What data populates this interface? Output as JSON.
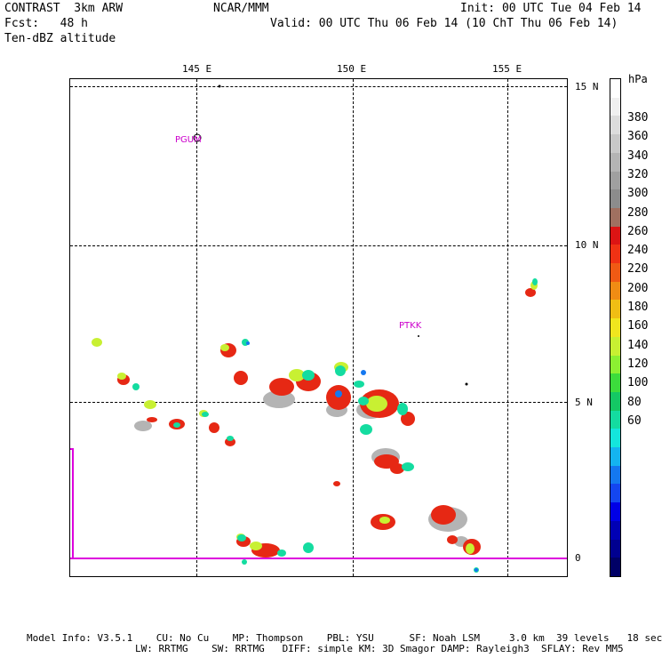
{
  "header": {
    "model": "CONTRAST  3km ARW",
    "org": "NCAR/MMM",
    "init": "Init: 00 UTC Tue 04 Feb 14",
    "fcst": "Fcst:   48 h",
    "valid": "Valid: 00 UTC Thu 06 Feb 14 (10 ChT Thu 06 Feb 14)",
    "field": "Ten-dBZ altitude"
  },
  "map": {
    "lon_labels": [
      "145 E",
      "150 E",
      "155 E"
    ],
    "lat_labels": [
      "15 N",
      "10 N",
      "5 N",
      "0"
    ],
    "stations": [
      "PGUM",
      "PTKK"
    ]
  },
  "colorbar": {
    "unit": "hPa",
    "labels": [
      "380",
      "360",
      "340",
      "320",
      "300",
      "280",
      "260",
      "240",
      "220",
      "200",
      "180",
      "160",
      "140",
      "120",
      "100",
      "80",
      "60"
    ],
    "colors": [
      "#ffffff",
      "#f0f0f0",
      "#dcdcdc",
      "#c8c8c8",
      "#b4b4b4",
      "#a0a0a0",
      "#8c8c8c",
      "#a07060",
      "#dc1414",
      "#f03214",
      "#f05a14",
      "#f08c14",
      "#f0be14",
      "#f0e61e",
      "#c8f032",
      "#8cf032",
      "#3cdc3c",
      "#14c864",
      "#14dca0",
      "#14e6dc",
      "#14b4f0",
      "#1478f0",
      "#1446f0",
      "#0000e6",
      "#0000b4",
      "#000090",
      "#000066"
    ]
  },
  "footer": {
    "line1": "Model Info: V3.5.1    CU: No Cu    MP: Thompson    PBL: YSU      SF: Noah LSM     3.0 km  39 levels   18 sec",
    "line2": "LW: RRTMG    SW: RRTMG   DIFF: simple KM: 3D Smagor DAMP: Rayleigh3  SFLAY: Rev MM5"
  }
}
